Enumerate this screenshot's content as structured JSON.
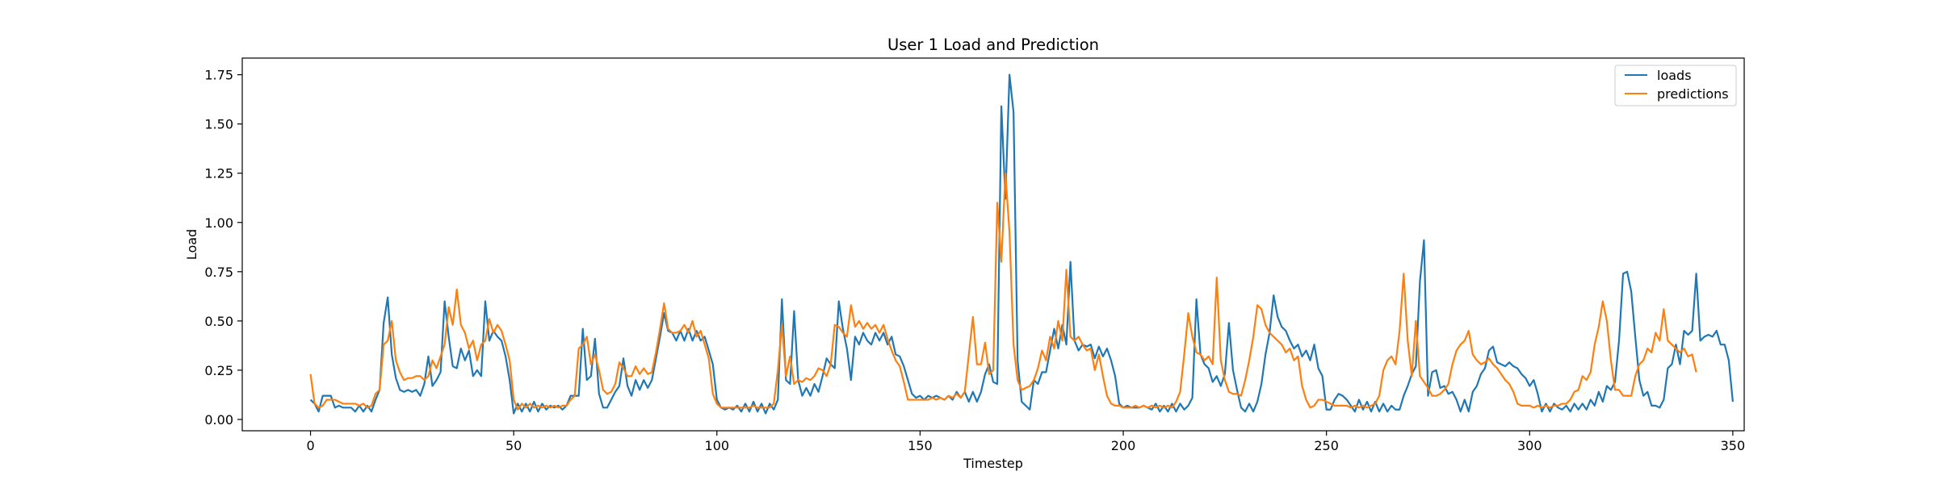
{
  "chart_data": {
    "type": "line",
    "title": "User 1 Load and Prediction",
    "xlabel": "Timestep",
    "ylabel": "Load",
    "xlim": [
      -16.8,
      352.8
    ],
    "ylim": [
      -0.0575,
      1.8345
    ],
    "xticks": [
      0,
      50,
      100,
      150,
      200,
      250,
      300,
      350
    ],
    "yticks": [
      0.0,
      0.25,
      0.5,
      0.75,
      1.0,
      1.25,
      1.5,
      1.75
    ],
    "xtick_labels": [
      "0",
      "50",
      "100",
      "150",
      "200",
      "250",
      "300",
      "350"
    ],
    "ytick_labels": [
      "0.00",
      "0.25",
      "0.50",
      "0.75",
      "1.00",
      "1.25",
      "1.50",
      "1.75"
    ],
    "grid": false,
    "legend": "top-right",
    "x_start": 0,
    "series": [
      {
        "name": "loads",
        "color": "#1f77b4",
        "values": [
          0.1,
          0.08,
          0.04,
          0.12,
          0.12,
          0.12,
          0.06,
          0.07,
          0.06,
          0.06,
          0.06,
          0.04,
          0.07,
          0.04,
          0.07,
          0.04,
          0.1,
          0.15,
          0.49,
          0.62,
          0.33,
          0.21,
          0.15,
          0.14,
          0.15,
          0.14,
          0.15,
          0.12,
          0.18,
          0.32,
          0.17,
          0.2,
          0.24,
          0.6,
          0.42,
          0.27,
          0.26,
          0.36,
          0.3,
          0.35,
          0.22,
          0.25,
          0.22,
          0.6,
          0.4,
          0.45,
          0.42,
          0.4,
          0.32,
          0.2,
          0.03,
          0.08,
          0.04,
          0.08,
          0.04,
          0.09,
          0.04,
          0.08,
          0.05,
          0.07,
          0.06,
          0.07,
          0.05,
          0.07,
          0.12,
          0.12,
          0.12,
          0.46,
          0.2,
          0.22,
          0.41,
          0.13,
          0.06,
          0.06,
          0.1,
          0.14,
          0.17,
          0.31,
          0.17,
          0.12,
          0.2,
          0.15,
          0.2,
          0.16,
          0.2,
          0.31,
          0.42,
          0.54,
          0.45,
          0.44,
          0.4,
          0.45,
          0.4,
          0.46,
          0.4,
          0.45,
          0.4,
          0.42,
          0.35,
          0.28,
          0.1,
          0.06,
          0.05,
          0.06,
          0.05,
          0.07,
          0.04,
          0.08,
          0.04,
          0.09,
          0.04,
          0.08,
          0.03,
          0.08,
          0.05,
          0.1,
          0.61,
          0.2,
          0.18,
          0.55,
          0.2,
          0.12,
          0.16,
          0.12,
          0.18,
          0.14,
          0.22,
          0.31,
          0.28,
          0.26,
          0.6,
          0.46,
          0.36,
          0.2,
          0.42,
          0.38,
          0.44,
          0.4,
          0.38,
          0.44,
          0.4,
          0.44,
          0.38,
          0.42,
          0.33,
          0.32,
          0.27,
          0.2,
          0.13,
          0.11,
          0.12,
          0.1,
          0.12,
          0.11,
          0.12,
          0.11,
          0.1,
          0.12,
          0.1,
          0.14,
          0.11,
          0.14,
          0.09,
          0.14,
          0.09,
          0.14,
          0.23,
          0.28,
          0.19,
          0.18,
          1.59,
          1.12,
          1.75,
          1.56,
          0.3,
          0.09,
          0.07,
          0.05,
          0.2,
          0.18,
          0.24,
          0.24,
          0.35,
          0.46,
          0.36,
          0.48,
          0.38,
          0.8,
          0.4,
          0.35,
          0.38,
          0.37,
          0.38,
          0.31,
          0.37,
          0.32,
          0.36,
          0.3,
          0.22,
          0.08,
          0.06,
          0.07,
          0.06,
          0.06,
          0.06,
          0.07,
          0.06,
          0.05,
          0.08,
          0.04,
          0.07,
          0.04,
          0.08,
          0.04,
          0.08,
          0.05,
          0.07,
          0.11,
          0.61,
          0.33,
          0.28,
          0.26,
          0.19,
          0.22,
          0.17,
          0.23,
          0.49,
          0.25,
          0.15,
          0.06,
          0.04,
          0.08,
          0.04,
          0.09,
          0.18,
          0.33,
          0.44,
          0.63,
          0.52,
          0.47,
          0.45,
          0.4,
          0.36,
          0.38,
          0.32,
          0.35,
          0.3,
          0.38,
          0.26,
          0.22,
          0.05,
          0.05,
          0.1,
          0.13,
          0.12,
          0.1,
          0.07,
          0.04,
          0.1,
          0.05,
          0.09,
          0.04,
          0.09,
          0.04,
          0.08,
          0.04,
          0.07,
          0.05,
          0.05,
          0.12,
          0.17,
          0.23,
          0.27,
          0.7,
          0.91,
          0.12,
          0.24,
          0.25,
          0.16,
          0.17,
          0.13,
          0.14,
          0.1,
          0.04,
          0.1,
          0.04,
          0.14,
          0.17,
          0.23,
          0.26,
          0.35,
          0.37,
          0.29,
          0.28,
          0.27,
          0.29,
          0.27,
          0.26,
          0.23,
          0.21,
          0.17,
          0.2,
          0.13,
          0.04,
          0.08,
          0.04,
          0.08,
          0.06,
          0.05,
          0.07,
          0.04,
          0.08,
          0.05,
          0.08,
          0.05,
          0.1,
          0.07,
          0.14,
          0.09,
          0.17,
          0.15,
          0.19,
          0.4,
          0.74,
          0.75,
          0.65,
          0.42,
          0.2,
          0.12,
          0.14,
          0.07,
          0.07,
          0.06,
          0.1,
          0.26,
          0.28,
          0.38,
          0.28,
          0.45,
          0.43,
          0.45,
          0.74,
          0.4,
          0.42,
          0.43,
          0.42,
          0.45,
          0.38,
          0.38,
          0.3,
          0.09
        ]
      },
      {
        "name": "predictions",
        "color": "#ff7f0e",
        "values": [
          0.23,
          0.08,
          0.06,
          0.07,
          0.1,
          0.1,
          0.1,
          0.09,
          0.08,
          0.08,
          0.08,
          0.08,
          0.07,
          0.08,
          0.06,
          0.07,
          0.13,
          0.15,
          0.38,
          0.4,
          0.5,
          0.3,
          0.24,
          0.2,
          0.21,
          0.21,
          0.22,
          0.22,
          0.2,
          0.22,
          0.3,
          0.26,
          0.32,
          0.38,
          0.57,
          0.48,
          0.66,
          0.48,
          0.44,
          0.36,
          0.4,
          0.3,
          0.38,
          0.4,
          0.51,
          0.44,
          0.48,
          0.45,
          0.38,
          0.3,
          0.1,
          0.05,
          0.08,
          0.06,
          0.08,
          0.06,
          0.07,
          0.06,
          0.07,
          0.06,
          0.07,
          0.06,
          0.07,
          0.07,
          0.1,
          0.12,
          0.36,
          0.38,
          0.42,
          0.28,
          0.33,
          0.25,
          0.15,
          0.13,
          0.14,
          0.18,
          0.29,
          0.26,
          0.22,
          0.22,
          0.27,
          0.23,
          0.26,
          0.23,
          0.24,
          0.34,
          0.46,
          0.59,
          0.46,
          0.44,
          0.44,
          0.45,
          0.48,
          0.44,
          0.5,
          0.42,
          0.45,
          0.38,
          0.31,
          0.13,
          0.08,
          0.06,
          0.06,
          0.06,
          0.06,
          0.06,
          0.06,
          0.06,
          0.06,
          0.07,
          0.06,
          0.06,
          0.06,
          0.06,
          0.08,
          0.25,
          0.48,
          0.22,
          0.32,
          0.18,
          0.2,
          0.19,
          0.21,
          0.2,
          0.22,
          0.26,
          0.25,
          0.22,
          0.28,
          0.48,
          0.47,
          0.44,
          0.42,
          0.58,
          0.47,
          0.5,
          0.46,
          0.49,
          0.46,
          0.48,
          0.44,
          0.48,
          0.41,
          0.35,
          0.3,
          0.27,
          0.19,
          0.1,
          0.1,
          0.1,
          0.1,
          0.1,
          0.1,
          0.11,
          0.1,
          0.11,
          0.1,
          0.12,
          0.11,
          0.13,
          0.11,
          0.14,
          0.33,
          0.52,
          0.28,
          0.28,
          0.39,
          0.23,
          0.25,
          1.1,
          0.8,
          1.25,
          0.95,
          0.38,
          0.2,
          0.15,
          0.16,
          0.17,
          0.2,
          0.26,
          0.35,
          0.3,
          0.42,
          0.36,
          0.5,
          0.4,
          0.76,
          0.42,
          0.4,
          0.42,
          0.38,
          0.35,
          0.36,
          0.25,
          0.33,
          0.22,
          0.12,
          0.08,
          0.07,
          0.07,
          0.06,
          0.06,
          0.06,
          0.07,
          0.06,
          0.07,
          0.06,
          0.07,
          0.06,
          0.07,
          0.06,
          0.07,
          0.06,
          0.09,
          0.14,
          0.33,
          0.54,
          0.42,
          0.34,
          0.33,
          0.3,
          0.32,
          0.28,
          0.72,
          0.3,
          0.2,
          0.14,
          0.13,
          0.13,
          0.12,
          0.2,
          0.3,
          0.42,
          0.58,
          0.56,
          0.48,
          0.44,
          0.42,
          0.4,
          0.38,
          0.34,
          0.36,
          0.3,
          0.32,
          0.17,
          0.1,
          0.06,
          0.07,
          0.1,
          0.1,
          0.09,
          0.08,
          0.07,
          0.07,
          0.07,
          0.07,
          0.06,
          0.07,
          0.06,
          0.07,
          0.06,
          0.07,
          0.08,
          0.12,
          0.25,
          0.3,
          0.32,
          0.28,
          0.45,
          0.74,
          0.4,
          0.22,
          0.5,
          0.22,
          0.19,
          0.16,
          0.12,
          0.12,
          0.13,
          0.15,
          0.18,
          0.28,
          0.35,
          0.38,
          0.4,
          0.45,
          0.33,
          0.3,
          0.28,
          0.29,
          0.31,
          0.28,
          0.26,
          0.23,
          0.2,
          0.18,
          0.14,
          0.08,
          0.07,
          0.07,
          0.07,
          0.06,
          0.07,
          0.06,
          0.07,
          0.06,
          0.07,
          0.07,
          0.08,
          0.08,
          0.1,
          0.14,
          0.15,
          0.22,
          0.2,
          0.24,
          0.38,
          0.47,
          0.6,
          0.5,
          0.3,
          0.15,
          0.15,
          0.12,
          0.12,
          0.12,
          0.22,
          0.28,
          0.3,
          0.36,
          0.34,
          0.44,
          0.4,
          0.56,
          0.4,
          0.38,
          0.36,
          0.34,
          0.36,
          0.32,
          0.33,
          0.24
        ]
      }
    ]
  }
}
